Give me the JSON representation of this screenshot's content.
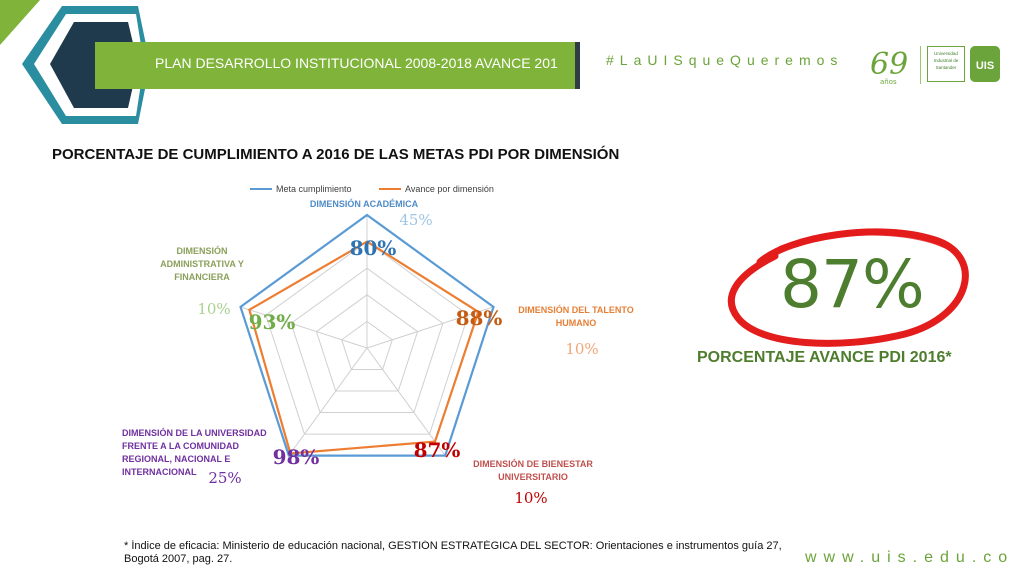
{
  "header": {
    "banner_text": "PLAN DESARROLLO INSTITUCIONAL 2008-2018 AVANCE 201",
    "hashtag": "#LaUISqueQueremos",
    "logo_69": "69",
    "logo_69_sub": "años",
    "logo_uis_lines": [
      "Universidad",
      "Industrial de",
      "Santander"
    ],
    "logo_uis_mark": "UIS"
  },
  "slide": {
    "title": "PORCENTAJE DE CUMPLIMIENTO A 2016 DE LAS METAS PDI POR DIMENSIÓN"
  },
  "chart_data": {
    "type": "radar",
    "legend": [
      "Meta cumplimiento",
      "Avance por dimensión"
    ],
    "legend_position": "top",
    "categories": [
      {
        "label_lines": [
          "DIMENSIÓN ACADÉMICA"
        ],
        "weight": "45%",
        "score": "80%",
        "label_color": "#4f8bc7",
        "weight_color": "#9fc4e4",
        "score_color": "#2e74b5"
      },
      {
        "label_lines": [
          "DIMENSIÓN DEL TALENTO",
          "HUMANO"
        ],
        "weight": "10%",
        "score": "88%",
        "label_color": "#e57f35",
        "weight_color": "#f2a675",
        "score_color": "#c55a11"
      },
      {
        "label_lines": [
          "DIMENSIÓN DE BIENESTAR",
          "UNIVERSITARIO"
        ],
        "weight": "10%",
        "score": "87%",
        "label_color": "#c0504d",
        "weight_color": "#c00000",
        "score_color": "#c00000"
      },
      {
        "label_lines": [
          "DIMENSIÓN DE LA UNIVERSIDAD",
          "FRENTE A LA COMUNIDAD",
          "REGIONAL, NACIONAL E",
          "INTERNACIONAL"
        ],
        "weight": "25%",
        "score": "98%",
        "label_color": "#7030a0",
        "weight_color": "#7030a0",
        "score_color": "#7030a0"
      },
      {
        "label_lines": [
          "DIMENSIÓN",
          "ADMINISTRATIVA Y",
          "FINANCIERA"
        ],
        "weight": "10%",
        "score": "93%",
        "label_color": "#8aa05a",
        "weight_color": "#a9d18e",
        "score_color": "#70ad47"
      }
    ],
    "series": [
      {
        "name": "Meta cumplimiento",
        "values": [
          100,
          100,
          100,
          100,
          100
        ],
        "color": "#5b9bd5"
      },
      {
        "name": "Avance por dimensión",
        "values": [
          80,
          88,
          87,
          98,
          93
        ],
        "color": "#ed7d31"
      }
    ],
    "r_range": [
      0,
      100
    ],
    "grid_rings": 4,
    "grid": true
  },
  "highlight": {
    "value": "87%",
    "label": "PORCENTAJE AVANCE PDI 2016*",
    "circle_color": "#e31c1c",
    "text_color": "#4d7d2f"
  },
  "footer": {
    "footnote": "* Índice de eficacia: Ministerio de educación nacional, GESTIÓN ESTRATÉGICA DEL SECTOR: Orientaciones e instrumentos guía 27, Bogotá 2007, pag. 27.",
    "url": "www.uis.edu.co"
  },
  "colors": {
    "brand_green": "#7fb339",
    "dark_navy": "#1f3a4d",
    "teal": "#2a8ea0"
  }
}
